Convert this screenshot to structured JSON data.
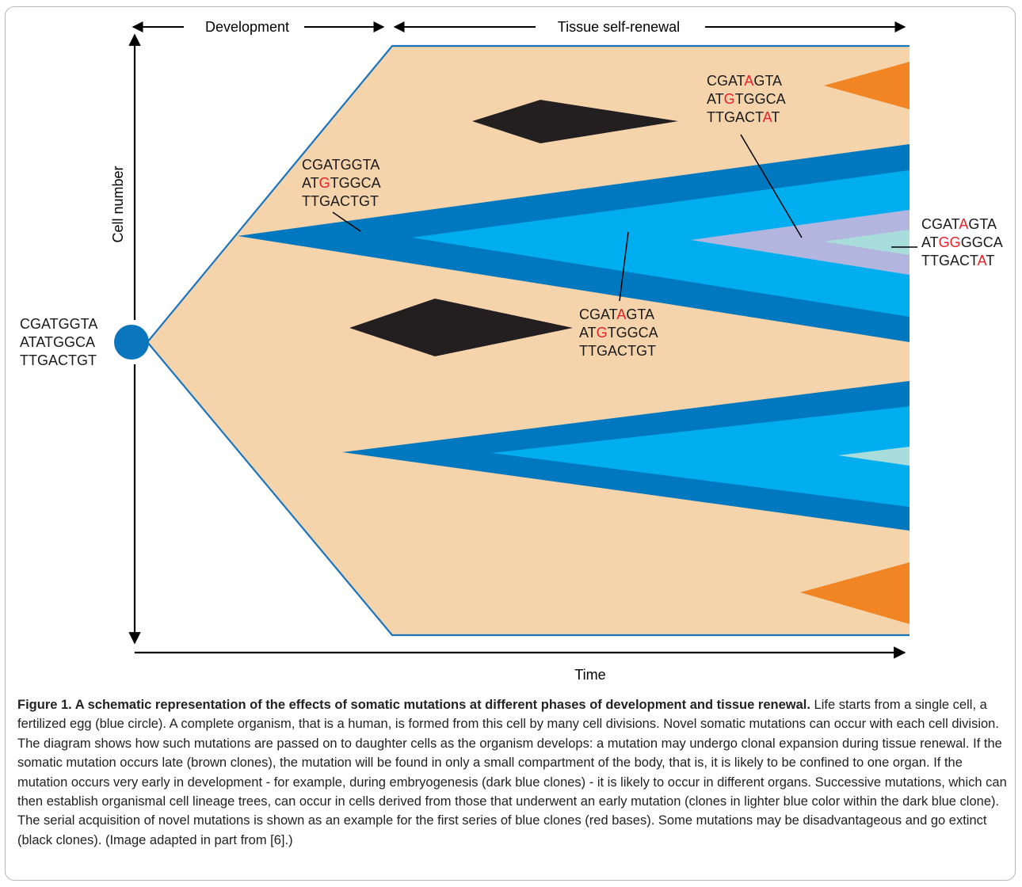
{
  "phases": {
    "development": "Development",
    "renewal": "Tissue self-renewal"
  },
  "axes": {
    "y_label": "Cell number",
    "x_label": "Time"
  },
  "sequences": {
    "origin": [
      [
        [
          "CGATGGTA",
          false
        ]
      ],
      [
        [
          "ATATGGCA",
          false
        ]
      ],
      [
        [
          "TTGACTGT",
          false
        ]
      ]
    ],
    "early": [
      [
        [
          "CGATGGTA",
          false
        ]
      ],
      [
        [
          "AT",
          false
        ],
        [
          "G",
          true
        ],
        [
          "TGGCA",
          false
        ]
      ],
      [
        [
          "TTGACTGT",
          false
        ]
      ]
    ],
    "second": [
      [
        [
          "CGAT",
          false
        ],
        [
          "A",
          true
        ],
        [
          "GTA",
          false
        ]
      ],
      [
        [
          "AT",
          false
        ],
        [
          "G",
          true
        ],
        [
          "TGGCA",
          false
        ]
      ],
      [
        [
          "TTGACTGT",
          false
        ]
      ]
    ],
    "third": [
      [
        [
          "CGAT",
          false
        ],
        [
          "A",
          true
        ],
        [
          "GTA",
          false
        ]
      ],
      [
        [
          "AT",
          false
        ],
        [
          "G",
          true
        ],
        [
          "TGGCA",
          false
        ]
      ],
      [
        [
          "TTGACT",
          false
        ],
        [
          "A",
          true
        ],
        [
          "T",
          false
        ]
      ]
    ],
    "fourth": [
      [
        [
          "CGAT",
          false
        ],
        [
          "A",
          true
        ],
        [
          "GTA",
          false
        ]
      ],
      [
        [
          "AT",
          false
        ],
        [
          "GG",
          true
        ],
        [
          "GGCA",
          false
        ]
      ],
      [
        [
          "TTGACT",
          false
        ],
        [
          "A",
          true
        ],
        [
          "T",
          false
        ]
      ]
    ]
  },
  "colors": {
    "tissue": "#f5d3ab",
    "dark_blue": "#0078c0",
    "light_blue": "#00adef",
    "lavender": "#b2b6de",
    "pale_cyan": "#a9dddb",
    "orange": "#f18524",
    "black": "#231f20",
    "egg": "#0b76bd",
    "mutation_red": "#e5232b"
  },
  "caption": {
    "title": "Figure 1. A schematic representation of the effects of somatic mutations at different phases of development and tissue renewal.",
    "body": "Life starts from a single cell, a fertilized egg (blue circle). A complete organism, that is a human, is formed from this cell by many cell divisions. Novel somatic mutations can occur with each cell division. The diagram shows how such mutations are passed on to daughter cells as the organism develops: a mutation may undergo clonal expansion during tissue renewal. If the somatic mutation occurs late (brown clones), the mutation will be found in only a small compartment of the body, that is, it is likely to be confined to one organ. If the mutation occurs very early in development - for example, during embryogenesis (dark blue clones) - it is likely to occur in different organs. Successive mutations, which can then establish organismal cell lineage trees, can occur in cells derived from those that underwent an early mutation (clones in lighter blue color within the dark blue clone). The serial acquisition of novel mutations is shown as an example for the first series of blue clones (red bases). Some mutations may be disadvantageous and go extinct (black clones). (Image adapted in part from [6].)"
  }
}
